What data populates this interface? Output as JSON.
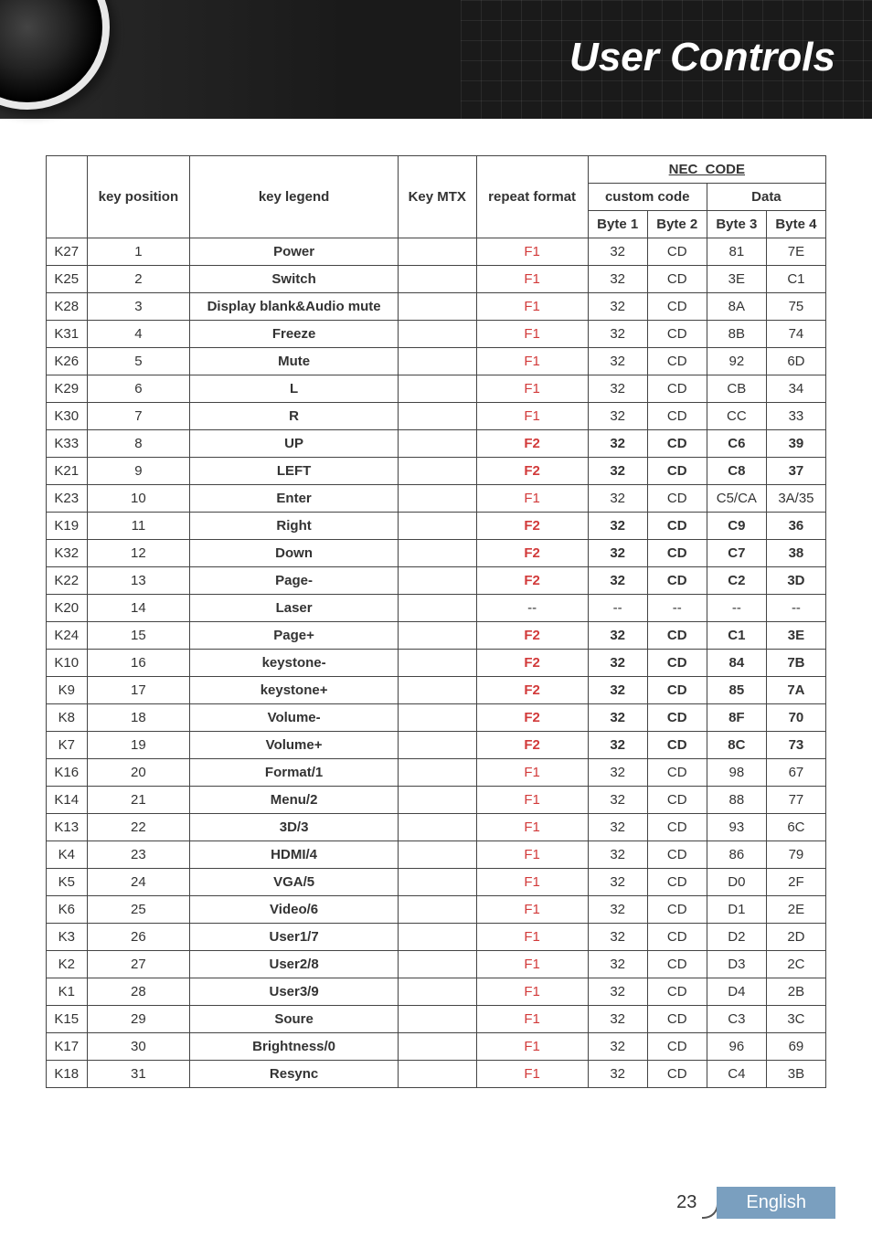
{
  "header": {
    "title": "User Controls"
  },
  "table": {
    "headers": {
      "row_label": "",
      "key_position": "key position",
      "key_legend": "key legend",
      "key_mtx": "Key MTX",
      "repeat_format": "repeat format",
      "nec_code": "NEC_CODE",
      "custom_code": "custom code",
      "data": "Data",
      "byte1": "Byte 1",
      "byte2": "Byte 2",
      "byte3": "Byte 3",
      "byte4": "Byte 4"
    },
    "rows": [
      {
        "label": "K27",
        "pos": "1",
        "legend": "Power",
        "mtx": "",
        "rf": "F1",
        "rf_class": "f1",
        "b1": "32",
        "b2": "CD",
        "b3": "81",
        "b4": "7E",
        "bold": false
      },
      {
        "label": "K25",
        "pos": "2",
        "legend": "Switch",
        "mtx": "",
        "rf": "F1",
        "rf_class": "f1",
        "b1": "32",
        "b2": "CD",
        "b3": "3E",
        "b4": "C1",
        "bold": false
      },
      {
        "label": "K28",
        "pos": "3",
        "legend": "Display blank&Audio mute",
        "mtx": "",
        "rf": "F1",
        "rf_class": "f1",
        "b1": "32",
        "b2": "CD",
        "b3": "8A",
        "b4": "75",
        "bold": false
      },
      {
        "label": "K31",
        "pos": "4",
        "legend": "Freeze",
        "mtx": "",
        "rf": "F1",
        "rf_class": "f1",
        "b1": "32",
        "b2": "CD",
        "b3": "8B",
        "b4": "74",
        "bold": false
      },
      {
        "label": "K26",
        "pos": "5",
        "legend": "Mute",
        "mtx": "",
        "rf": "F1",
        "rf_class": "f1",
        "b1": "32",
        "b2": "CD",
        "b3": "92",
        "b4": "6D",
        "bold": false
      },
      {
        "label": "K29",
        "pos": "6",
        "legend": "L",
        "mtx": "",
        "rf": "F1",
        "rf_class": "f1",
        "b1": "32",
        "b2": "CD",
        "b3": "CB",
        "b4": "34",
        "bold": false
      },
      {
        "label": "K30",
        "pos": "7",
        "legend": "R",
        "mtx": "",
        "rf": "F1",
        "rf_class": "f1",
        "b1": "32",
        "b2": "CD",
        "b3": "CC",
        "b4": "33",
        "bold": false
      },
      {
        "label": "K33",
        "pos": "8",
        "legend": "UP",
        "mtx": "",
        "rf": "F2",
        "rf_class": "f2",
        "b1": "32",
        "b2": "CD",
        "b3": "C6",
        "b4": "39",
        "bold": true
      },
      {
        "label": "K21",
        "pos": "9",
        "legend": "LEFT",
        "mtx": "",
        "rf": "F2",
        "rf_class": "f2",
        "b1": "32",
        "b2": "CD",
        "b3": "C8",
        "b4": "37",
        "bold": true
      },
      {
        "label": "K23",
        "pos": "10",
        "legend": "Enter",
        "mtx": "",
        "rf": "F1",
        "rf_class": "f1",
        "b1": "32",
        "b2": "CD",
        "b3": "C5/CA",
        "b4": "3A/35",
        "bold": false
      },
      {
        "label": "K19",
        "pos": "11",
        "legend": "Right",
        "mtx": "",
        "rf": "F2",
        "rf_class": "f2",
        "b1": "32",
        "b2": "CD",
        "b3": "C9",
        "b4": "36",
        "bold": true
      },
      {
        "label": "K32",
        "pos": "12",
        "legend": "Down",
        "mtx": "",
        "rf": "F2",
        "rf_class": "f2",
        "b1": "32",
        "b2": "CD",
        "b3": "C7",
        "b4": "38",
        "bold": true
      },
      {
        "label": "K22",
        "pos": "13",
        "legend": "Page-",
        "mtx": "",
        "rf": "F2",
        "rf_class": "f2",
        "b1": "32",
        "b2": "CD",
        "b3": "C2",
        "b4": "3D",
        "bold": true
      },
      {
        "label": "K20",
        "pos": "14",
        "legend": "Laser",
        "mtx": "",
        "rf": "--",
        "rf_class": "",
        "b1": "--",
        "b2": "--",
        "b3": "--",
        "b4": "--",
        "bold": false
      },
      {
        "label": "K24",
        "pos": "15",
        "legend": "Page+",
        "mtx": "",
        "rf": "F2",
        "rf_class": "f2",
        "b1": "32",
        "b2": "CD",
        "b3": "C1",
        "b4": "3E",
        "bold": true
      },
      {
        "label": "K10",
        "pos": "16",
        "legend": "keystone-",
        "mtx": "",
        "rf": "F2",
        "rf_class": "f2",
        "b1": "32",
        "b2": "CD",
        "b3": "84",
        "b4": "7B",
        "bold": true
      },
      {
        "label": "K9",
        "pos": "17",
        "legend": "keystone+",
        "mtx": "",
        "rf": "F2",
        "rf_class": "f2",
        "b1": "32",
        "b2": "CD",
        "b3": "85",
        "b4": "7A",
        "bold": true
      },
      {
        "label": "K8",
        "pos": "18",
        "legend": "Volume-",
        "mtx": "",
        "rf": "F2",
        "rf_class": "f2",
        "b1": "32",
        "b2": "CD",
        "b3": "8F",
        "b4": "70",
        "bold": true
      },
      {
        "label": "K7",
        "pos": "19",
        "legend": "Volume+",
        "mtx": "",
        "rf": "F2",
        "rf_class": "f2",
        "b1": "32",
        "b2": "CD",
        "b3": "8C",
        "b4": "73",
        "bold": true
      },
      {
        "label": "K16",
        "pos": "20",
        "legend": "Format/1",
        "mtx": "",
        "rf": "F1",
        "rf_class": "f1",
        "b1": "32",
        "b2": "CD",
        "b3": "98",
        "b4": "67",
        "bold": false
      },
      {
        "label": "K14",
        "pos": "21",
        "legend": "Menu/2",
        "mtx": "",
        "rf": "F1",
        "rf_class": "f1",
        "b1": "32",
        "b2": "CD",
        "b3": "88",
        "b4": "77",
        "bold": false
      },
      {
        "label": "K13",
        "pos": "22",
        "legend": "3D/3",
        "mtx": "",
        "rf": "F1",
        "rf_class": "f1",
        "b1": "32",
        "b2": "CD",
        "b3": "93",
        "b4": "6C",
        "bold": false
      },
      {
        "label": "K4",
        "pos": "23",
        "legend": "HDMI/4",
        "mtx": "",
        "rf": "F1",
        "rf_class": "f1",
        "b1": "32",
        "b2": "CD",
        "b3": "86",
        "b4": "79",
        "bold": false
      },
      {
        "label": "K5",
        "pos": "24",
        "legend": "VGA/5",
        "mtx": "",
        "rf": "F1",
        "rf_class": "f1",
        "b1": "32",
        "b2": "CD",
        "b3": "D0",
        "b4": "2F",
        "bold": false
      },
      {
        "label": "K6",
        "pos": "25",
        "legend": "Video/6",
        "mtx": "",
        "rf": "F1",
        "rf_class": "f1",
        "b1": "32",
        "b2": "CD",
        "b3": "D1",
        "b4": "2E",
        "bold": false
      },
      {
        "label": "K3",
        "pos": "26",
        "legend": "User1/7",
        "mtx": "",
        "rf": "F1",
        "rf_class": "f1",
        "b1": "32",
        "b2": "CD",
        "b3": "D2",
        "b4": "2D",
        "bold": false
      },
      {
        "label": "K2",
        "pos": "27",
        "legend": "User2/8",
        "mtx": "",
        "rf": "F1",
        "rf_class": "f1",
        "b1": "32",
        "b2": "CD",
        "b3": "D3",
        "b4": "2C",
        "bold": false
      },
      {
        "label": "K1",
        "pos": "28",
        "legend": "User3/9",
        "mtx": "",
        "rf": "F1",
        "rf_class": "f1",
        "b1": "32",
        "b2": "CD",
        "b3": "D4",
        "b4": "2B",
        "bold": false
      },
      {
        "label": "K15",
        "pos": "29",
        "legend": "Soure",
        "mtx": "",
        "rf": "F1",
        "rf_class": "f1",
        "b1": "32",
        "b2": "CD",
        "b3": "C3",
        "b4": "3C",
        "bold": false
      },
      {
        "label": "K17",
        "pos": "30",
        "legend": "Brightness/0",
        "mtx": "",
        "rf": "F1",
        "rf_class": "f1",
        "b1": "32",
        "b2": "CD",
        "b3": "96",
        "b4": "69",
        "bold": false
      },
      {
        "label": "K18",
        "pos": "31",
        "legend": "Resync",
        "mtx": "",
        "rf": "F1",
        "rf_class": "f1",
        "b1": "32",
        "b2": "CD",
        "b3": "C4",
        "b4": "3B",
        "bold": false
      }
    ]
  },
  "footer": {
    "page": "23",
    "language": "English"
  }
}
